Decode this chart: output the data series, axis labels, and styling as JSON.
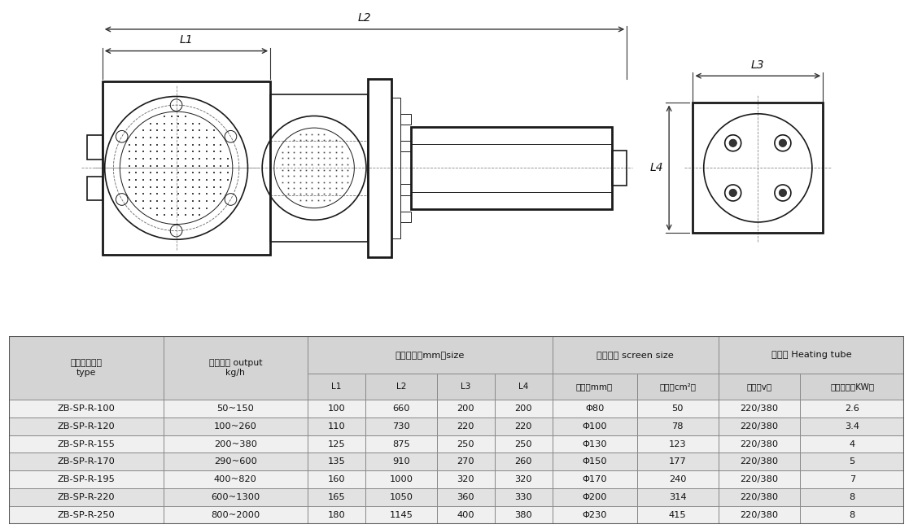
{
  "bg_color": "#ffffff",
  "table_bg_header": "#d4d4d4",
  "table_bg_row_odd": "#f0f0f0",
  "table_bg_row_even": "#e2e2e2",
  "table_border_color": "#888888",
  "drawing_line_color": "#1a1a1a",
  "dim_line_color": "#333333",
  "headers_row1": [
    "产品规格型号",
    "适用产量 output",
    "轮廓尺寸（mm）size",
    "",
    "",
    "",
    "滤网尺寸 screen size",
    "",
    "加热器 Heating tube",
    ""
  ],
  "headers_row2": [
    "type",
    "kg/h",
    "L1",
    "L2",
    "L3",
    "L4",
    "直径（mm）",
    "面积（cm²）",
    "电压（v）",
    "加热功率（KW）"
  ],
  "data_rows": [
    [
      "ZB-SP-R-100",
      "50~150",
      "100",
      "660",
      "200",
      "200",
      "Φ80",
      "50",
      "220/380",
      "2.6"
    ],
    [
      "ZB-SP-R-120",
      "100~260",
      "110",
      "730",
      "220",
      "220",
      "Φ100",
      "78",
      "220/380",
      "3.4"
    ],
    [
      "ZB-SP-R-155",
      "200~380",
      "125",
      "875",
      "250",
      "250",
      "Φ130",
      "123",
      "220/380",
      "4"
    ],
    [
      "ZB-SP-R-170",
      "290~600",
      "135",
      "910",
      "270",
      "260",
      "Φ150",
      "177",
      "220/380",
      "5"
    ],
    [
      "ZB-SP-R-195",
      "400~820",
      "160",
      "1000",
      "320",
      "320",
      "Φ170",
      "240",
      "220/380",
      "7"
    ],
    [
      "ZB-SP-R-220",
      "600~1300",
      "165",
      "1050",
      "360",
      "330",
      "Φ200",
      "314",
      "220/380",
      "8"
    ],
    [
      "ZB-SP-R-250",
      "800~2000",
      "180",
      "1145",
      "400",
      "380",
      "Φ230",
      "415",
      "220/380",
      "8"
    ]
  ],
  "col_widths_rel": [
    1.55,
    1.45,
    0.58,
    0.72,
    0.58,
    0.58,
    0.85,
    0.82,
    0.82,
    1.05
  ]
}
